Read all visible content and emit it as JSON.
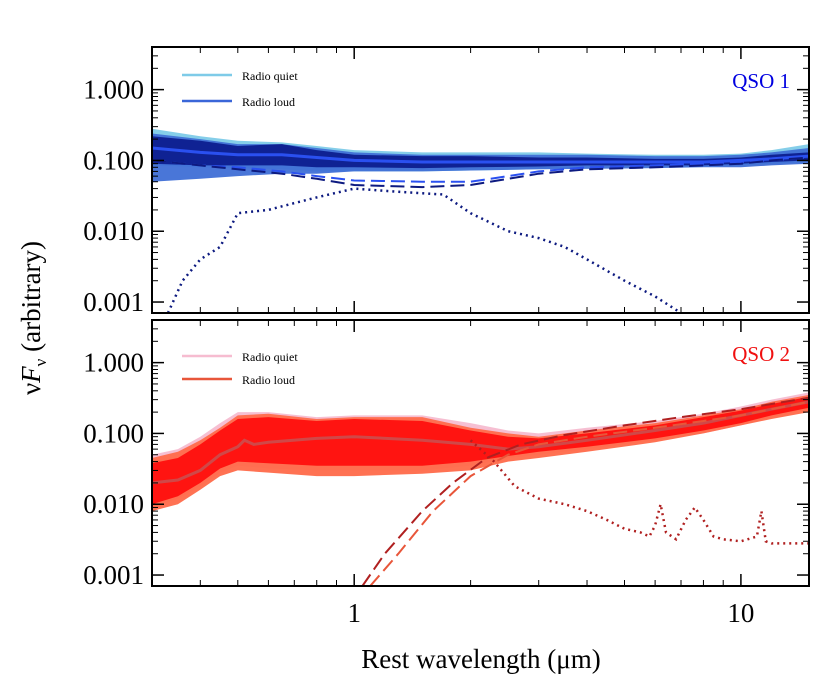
{
  "figure": {
    "ylabel_nu": "ν",
    "ylabel_F": "F",
    "ylabel_sub": "ν",
    "ylabel_rest": " (arbitrary)",
    "xlabel": "Rest wavelength (μm)"
  },
  "colors": {
    "qso1_title": "#0000e0",
    "qso2_title": "#f01010",
    "rq_blue": "#7ecbe8",
    "rl_blue": "#3a66d8",
    "band_blue_light": "#3f6fd6",
    "band_blue_dark": "#0a1a8c",
    "mean_blue": "#2a50f0",
    "dark_blue": "#0d1a80",
    "rq_pink": "#f6bcd0",
    "rl_red": "#e8563a",
    "band_red_light": "#ff6a4a",
    "band_red_dark": "#ff0a0a",
    "mean_red": "#d04848",
    "dark_red": "#b02020"
  },
  "chart_data": [
    {
      "type": "area",
      "title": "QSO 1",
      "legend": [
        "Radio quiet",
        "Radio loud"
      ],
      "legend_position": "top-left",
      "title_position": "top-right",
      "x_scale": "log",
      "y_scale": "log",
      "xlim": [
        0.3,
        15
      ],
      "ylim": [
        0.0007,
        4
      ],
      "x_ticks": [
        1,
        10
      ],
      "x_tick_labels": [
        "",
        ""
      ],
      "y_ticks": [
        0.001,
        0.01,
        0.1,
        1
      ],
      "y_tick_labels": [
        "0.001",
        "0.010",
        "0.100",
        "1.000"
      ],
      "series": [
        {
          "name": "Radio quiet",
          "style": "band",
          "x": [
            0.3,
            0.4,
            0.5,
            0.65,
            0.8,
            1.0,
            1.5,
            2,
            3,
            4,
            6,
            8,
            10,
            12,
            15
          ],
          "lower": [
            0.085,
            0.08,
            0.078,
            0.075,
            0.07,
            0.07,
            0.07,
            0.072,
            0.075,
            0.078,
            0.08,
            0.082,
            0.085,
            0.09,
            0.095
          ],
          "upper": [
            0.28,
            0.22,
            0.19,
            0.18,
            0.16,
            0.14,
            0.13,
            0.13,
            0.13,
            0.125,
            0.12,
            0.12,
            0.125,
            0.14,
            0.17
          ]
        },
        {
          "name": "Radio loud",
          "style": "band",
          "x": [
            0.3,
            0.4,
            0.5,
            0.65,
            0.8,
            1.0,
            1.5,
            2,
            3,
            4,
            6,
            8,
            10,
            12,
            15
          ],
          "lower": [
            0.05,
            0.055,
            0.06,
            0.065,
            0.065,
            0.07,
            0.07,
            0.072,
            0.075,
            0.076,
            0.078,
            0.08,
            0.08,
            0.085,
            0.09
          ],
          "upper": [
            0.24,
            0.2,
            0.17,
            0.17,
            0.15,
            0.13,
            0.12,
            0.12,
            0.12,
            0.12,
            0.115,
            0.115,
            0.12,
            0.13,
            0.15
          ]
        },
        {
          "name": "",
          "style": "band-dark",
          "x": [
            0.3,
            0.4,
            0.5,
            0.65,
            0.8,
            1.0,
            1.5,
            2,
            3,
            4,
            6,
            8,
            10,
            12,
            15
          ],
          "lower": [
            0.09,
            0.085,
            0.085,
            0.085,
            0.08,
            0.08,
            0.078,
            0.08,
            0.082,
            0.085,
            0.085,
            0.085,
            0.09,
            0.095,
            0.1
          ],
          "upper": [
            0.22,
            0.19,
            0.16,
            0.17,
            0.14,
            0.12,
            0.115,
            0.115,
            0.11,
            0.11,
            0.105,
            0.105,
            0.11,
            0.12,
            0.13
          ]
        },
        {
          "name": "",
          "style": "mean",
          "x": [
            0.3,
            0.4,
            0.5,
            0.65,
            0.8,
            1.0,
            1.5,
            2,
            3,
            4,
            6,
            8,
            10,
            12,
            15
          ],
          "y": [
            0.15,
            0.13,
            0.12,
            0.12,
            0.11,
            0.1,
            0.095,
            0.095,
            0.095,
            0.095,
            0.095,
            0.095,
            0.1,
            0.105,
            0.115
          ]
        },
        {
          "name": "",
          "style": "dashed-light",
          "x": [
            0.3,
            0.4,
            0.5,
            0.65,
            0.8,
            1.0,
            1.5,
            2,
            2.5,
            3,
            4,
            6,
            8,
            10,
            12,
            15
          ],
          "y": [
            0.1,
            0.085,
            0.08,
            0.07,
            0.06,
            0.052,
            0.05,
            0.05,
            0.06,
            0.07,
            0.08,
            0.085,
            0.09,
            0.095,
            0.1,
            0.11
          ]
        },
        {
          "name": "",
          "style": "dashed-dark",
          "x": [
            0.3,
            0.4,
            0.5,
            0.65,
            0.8,
            1.0,
            1.5,
            2,
            2.5,
            3,
            4,
            6,
            8,
            10,
            12,
            15
          ],
          "y": [
            0.1,
            0.085,
            0.075,
            0.065,
            0.055,
            0.045,
            0.042,
            0.045,
            0.055,
            0.065,
            0.075,
            0.08,
            0.085,
            0.09,
            0.1,
            0.11
          ]
        },
        {
          "name": "",
          "style": "dotted",
          "x": [
            0.33,
            0.36,
            0.4,
            0.45,
            0.5,
            0.6,
            0.7,
            0.8,
            1.0,
            1.3,
            1.7,
            2.0,
            2.5,
            3.0,
            3.5,
            4.0,
            5.0,
            6.0,
            7.0
          ],
          "y": [
            0.0007,
            0.002,
            0.004,
            0.006,
            0.018,
            0.02,
            0.025,
            0.03,
            0.04,
            0.036,
            0.033,
            0.018,
            0.01,
            0.008,
            0.006,
            0.004,
            0.002,
            0.0012,
            0.0007
          ]
        }
      ]
    },
    {
      "type": "area",
      "title": "QSO 2",
      "legend": [
        "Radio quiet",
        "Radio loud"
      ],
      "legend_position": "top-left",
      "title_position": "top-right",
      "x_scale": "log",
      "y_scale": "log",
      "xlim": [
        0.3,
        15
      ],
      "ylim": [
        0.0007,
        4
      ],
      "x_ticks": [
        1,
        10
      ],
      "x_tick_labels": [
        "1",
        "10"
      ],
      "y_ticks": [
        0.001,
        0.01,
        0.1,
        1
      ],
      "y_tick_labels": [
        "0.001",
        "0.010",
        "0.100",
        "1.000"
      ],
      "series": [
        {
          "name": "Radio quiet",
          "style": "band",
          "x": [
            0.3,
            0.35,
            0.4,
            0.45,
            0.5,
            0.6,
            0.8,
            1.0,
            1.5,
            2,
            2.5,
            3,
            4,
            6,
            8,
            10,
            12,
            15
          ],
          "lower": [
            0.009,
            0.012,
            0.018,
            0.028,
            0.035,
            0.032,
            0.03,
            0.03,
            0.03,
            0.035,
            0.045,
            0.05,
            0.06,
            0.08,
            0.1,
            0.13,
            0.17,
            0.22
          ],
          "upper": [
            0.05,
            0.06,
            0.09,
            0.14,
            0.2,
            0.2,
            0.17,
            0.18,
            0.18,
            0.14,
            0.11,
            0.1,
            0.12,
            0.15,
            0.19,
            0.24,
            0.3,
            0.38
          ]
        },
        {
          "name": "Radio loud",
          "style": "band",
          "x": [
            0.3,
            0.35,
            0.4,
            0.45,
            0.5,
            0.6,
            0.8,
            1.0,
            1.5,
            2,
            2.5,
            3,
            4,
            6,
            8,
            10,
            12,
            15
          ],
          "lower": [
            0.008,
            0.01,
            0.016,
            0.025,
            0.03,
            0.028,
            0.025,
            0.025,
            0.027,
            0.03,
            0.04,
            0.045,
            0.055,
            0.075,
            0.1,
            0.13,
            0.16,
            0.2
          ],
          "upper": [
            0.045,
            0.055,
            0.08,
            0.12,
            0.18,
            0.19,
            0.16,
            0.17,
            0.17,
            0.12,
            0.1,
            0.09,
            0.11,
            0.14,
            0.18,
            0.22,
            0.28,
            0.35
          ]
        },
        {
          "name": "",
          "style": "band-dark",
          "x": [
            0.3,
            0.35,
            0.4,
            0.45,
            0.5,
            0.6,
            0.8,
            1.0,
            1.5,
            2,
            2.5,
            3,
            4,
            6,
            8,
            10,
            12,
            15
          ],
          "lower": [
            0.01,
            0.013,
            0.02,
            0.032,
            0.04,
            0.038,
            0.035,
            0.035,
            0.035,
            0.04,
            0.048,
            0.055,
            0.065,
            0.085,
            0.11,
            0.14,
            0.18,
            0.23
          ],
          "upper": [
            0.038,
            0.045,
            0.07,
            0.11,
            0.16,
            0.17,
            0.15,
            0.16,
            0.15,
            0.11,
            0.09,
            0.085,
            0.1,
            0.13,
            0.17,
            0.21,
            0.26,
            0.33
          ]
        },
        {
          "name": "",
          "style": "mean",
          "x": [
            0.3,
            0.35,
            0.4,
            0.45,
            0.5,
            0.52,
            0.55,
            0.6,
            0.8,
            1.0,
            1.5,
            2,
            2.5,
            3,
            4,
            6,
            8,
            10,
            12,
            15
          ],
          "y": [
            0.02,
            0.022,
            0.03,
            0.05,
            0.065,
            0.08,
            0.07,
            0.075,
            0.085,
            0.09,
            0.08,
            0.07,
            0.06,
            0.065,
            0.08,
            0.11,
            0.14,
            0.18,
            0.22,
            0.28
          ]
        },
        {
          "name": "",
          "style": "dashed-light",
          "x": [
            1.1,
            1.3,
            1.6,
            2.0,
            2.5,
            3.0,
            4.0,
            6.0,
            8.0,
            10,
            12,
            15
          ],
          "y": [
            0.0007,
            0.002,
            0.008,
            0.025,
            0.05,
            0.07,
            0.09,
            0.12,
            0.15,
            0.18,
            0.22,
            0.28
          ]
        },
        {
          "name": "",
          "style": "dashed-dark",
          "x": [
            1.05,
            1.2,
            1.5,
            1.8,
            2.2,
            2.7,
            3.5,
            5.0,
            7.0,
            10,
            12,
            15
          ],
          "y": [
            0.0007,
            0.002,
            0.008,
            0.02,
            0.045,
            0.07,
            0.095,
            0.13,
            0.17,
            0.22,
            0.26,
            0.32
          ]
        },
        {
          "name": "",
          "style": "dotted",
          "x": [
            2.0,
            2.3,
            2.6,
            3.0,
            3.5,
            4.0,
            4.5,
            5.0,
            5.5,
            5.8,
            6.0,
            6.2,
            6.4,
            6.8,
            7.2,
            7.6,
            8.0,
            8.5,
            9.0,
            10,
            11,
            11.3,
            11.6,
            12,
            13,
            14,
            15
          ],
          "y": [
            0.08,
            0.04,
            0.018,
            0.012,
            0.01,
            0.008,
            0.006,
            0.0045,
            0.004,
            0.0035,
            0.005,
            0.01,
            0.004,
            0.0032,
            0.006,
            0.009,
            0.006,
            0.0035,
            0.0032,
            0.003,
            0.0035,
            0.008,
            0.003,
            0.0028,
            0.0028,
            0.0028,
            0.0028
          ]
        }
      ]
    }
  ]
}
